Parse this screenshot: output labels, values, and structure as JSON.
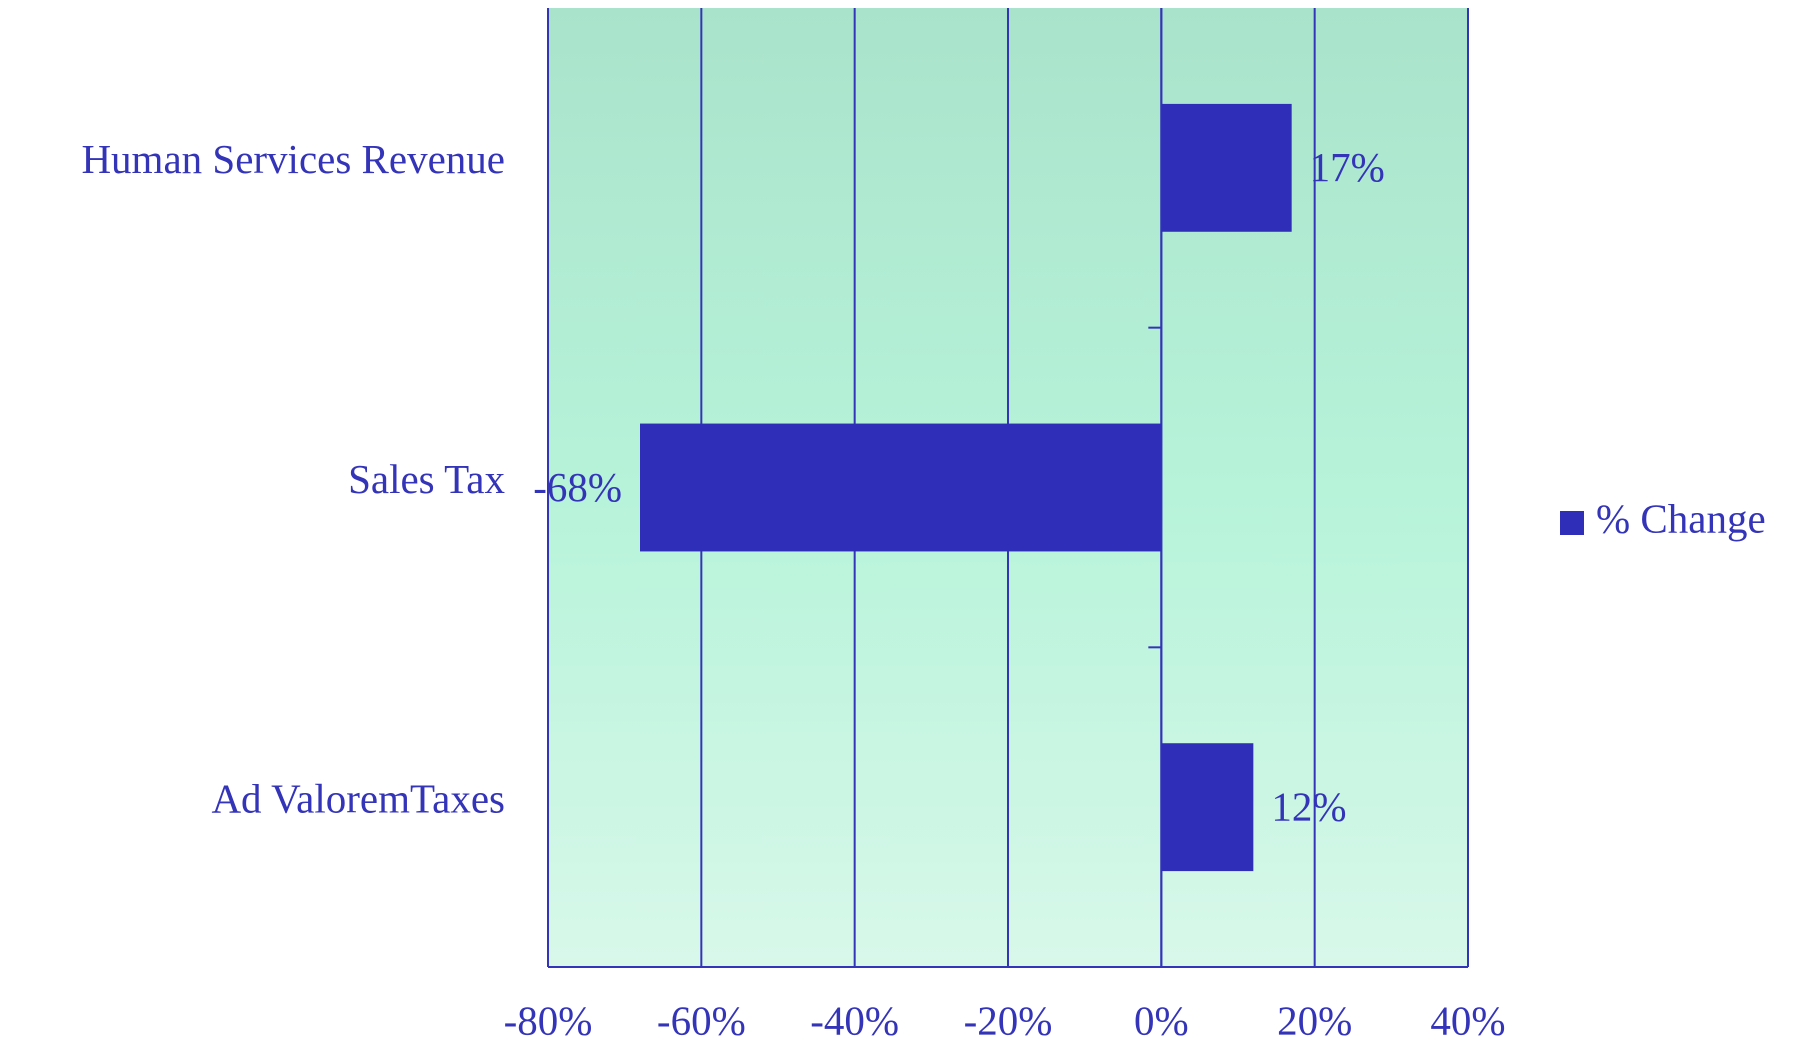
{
  "chart_data": {
    "type": "bar",
    "orientation": "horizontal",
    "categories": [
      "Human Services Revenue",
      "Sales Tax",
      "Ad ValoremTaxes"
    ],
    "series": [
      {
        "name": "% Change",
        "color": "#2e2eb8",
        "values": [
          17,
          -68,
          12
        ],
        "value_labels": [
          "17%",
          "-68%",
          "12%"
        ]
      }
    ],
    "xlim": [
      -80,
      40
    ],
    "xticks": [
      {
        "value": -80,
        "label": "-80%"
      },
      {
        "value": -60,
        "label": "-60%"
      },
      {
        "value": -40,
        "label": "-40%"
      },
      {
        "value": -20,
        "label": "-20%"
      },
      {
        "value": 0,
        "label": "0%"
      },
      {
        "value": 20,
        "label": "20%"
      },
      {
        "value": 40,
        "label": "40%"
      }
    ],
    "grid": true,
    "legend": "right"
  }
}
